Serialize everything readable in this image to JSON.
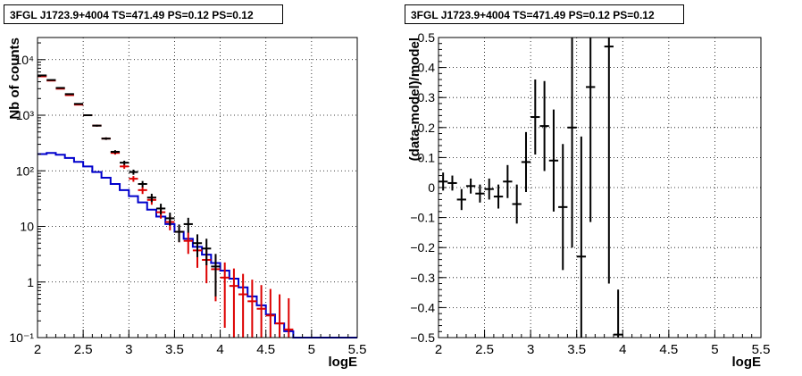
{
  "chart_data": [
    {
      "type": "histogram",
      "title": "3FGL J1723.9+4004 TS=471.49 PS=0.12 PS=0.12",
      "xlabel": "logE",
      "ylabel": "Nb of counts",
      "xlim": [
        2,
        5.5
      ],
      "ylim": [
        0.1,
        25000
      ],
      "yscale": "log",
      "grid": true,
      "xticks": [
        "2",
        "2.5",
        "3",
        "3.5",
        "4",
        "4.5",
        "5",
        "5.5"
      ],
      "yticks": [
        {
          "value": 0.1,
          "label": "10⁻¹"
        },
        {
          "value": 1,
          "label": "1"
        },
        {
          "value": 10,
          "label": "10"
        },
        {
          "value": 100,
          "label": "10²"
        },
        {
          "value": 1000,
          "label": "10³"
        },
        {
          "value": 10000,
          "label": "10⁴"
        }
      ],
      "bin_width": 0.1,
      "data_points": {
        "color": "#000000",
        "x": [
          2.05,
          2.15,
          2.25,
          2.35,
          2.45,
          2.55,
          2.65,
          2.75,
          2.85,
          2.95,
          3.05,
          3.15,
          3.25,
          3.35,
          3.45,
          3.55,
          3.65,
          3.75,
          3.85,
          3.95
        ],
        "y": [
          5200,
          4300,
          3100,
          2400,
          1600,
          1000,
          650,
          380,
          220,
          140,
          95,
          58,
          33,
          21,
          14,
          8,
          11,
          5,
          4,
          1.9
        ],
        "yerr_low": [
          70,
          65,
          55,
          49,
          40,
          32,
          25,
          19,
          15,
          12,
          10,
          7.6,
          5.7,
          4.6,
          3.7,
          2.8,
          3.3,
          2.2,
          2.0,
          1.35
        ],
        "yerr_high": [
          70,
          65,
          55,
          49,
          40,
          32,
          25,
          19,
          15,
          12,
          10,
          7.6,
          5.7,
          4.6,
          3.7,
          2.8,
          3.3,
          2.2,
          2.0,
          1.3
        ]
      },
      "model_points": {
        "color": "#dd0000",
        "x": [
          2.05,
          2.15,
          2.25,
          2.35,
          2.45,
          2.55,
          2.65,
          2.75,
          2.85,
          2.95,
          3.05,
          3.15,
          3.25,
          3.35,
          3.45,
          3.55,
          3.65,
          3.75,
          3.85,
          3.95,
          4.05,
          4.15,
          4.25,
          4.35,
          4.45,
          4.55,
          4.65,
          4.75
        ],
        "y": [
          5000,
          4200,
          3000,
          2300,
          1550,
          1000,
          650,
          380,
          210,
          120,
          72,
          45,
          30,
          18,
          12,
          8,
          5.5,
          3.7,
          2.5,
          1.7,
          1.2,
          0.85,
          0.6,
          0.45,
          0.33,
          0.25,
          0.18,
          0.14
        ],
        "yerr_low": [
          71,
          65,
          55,
          48,
          39,
          32,
          25,
          19,
          14.5,
          11,
          8.5,
          6.7,
          5.5,
          4.2,
          3.5,
          2.8,
          2.3,
          1.9,
          1.55,
          1.25,
          1.05,
          0.83,
          0.5,
          0.35,
          0.23,
          0.15,
          0.08,
          0.04
        ],
        "yerr_high": [
          71,
          65,
          55,
          48,
          39,
          32,
          25,
          19,
          14.5,
          11,
          8.5,
          6.7,
          5.5,
          4.2,
          3.5,
          2.8,
          2.3,
          1.9,
          1.55,
          1.25,
          1.05,
          0.9,
          0.8,
          0.65,
          0.55,
          0.5,
          0.42,
          0.37
        ]
      },
      "background": {
        "color": "#0000cc",
        "edges": [
          2.0,
          2.1,
          2.2,
          2.3,
          2.4,
          2.5,
          2.6,
          2.7,
          2.8,
          2.9,
          3.0,
          3.1,
          3.2,
          3.3,
          3.4,
          3.5,
          3.6,
          3.7,
          3.8,
          3.9,
          4.0,
          4.1,
          4.2,
          4.3,
          4.4,
          4.5,
          4.6,
          4.7,
          4.8,
          5.5
        ],
        "values": [
          200,
          210,
          195,
          170,
          145,
          120,
          95,
          75,
          58,
          45,
          35,
          27,
          20,
          15,
          11,
          8,
          6,
          4.3,
          3.1,
          2.2,
          1.6,
          1.15,
          0.8,
          0.55,
          0.38,
          0.26,
          0.18,
          0.13,
          0.1
        ]
      }
    },
    {
      "type": "scatter",
      "title": "3FGL J1723.9+4004 TS=471.49 PS=0.12 PS=0.12",
      "xlabel": "logE",
      "ylabel": "(data-model)/model",
      "xlim": [
        2,
        5.5
      ],
      "ylim": [
        -0.5,
        0.5
      ],
      "grid": true,
      "xticks": [
        "2",
        "2.5",
        "3",
        "3.5",
        "4",
        "4.5",
        "5",
        "5.5"
      ],
      "yticks": [
        "−0.5",
        "−0.4",
        "−0.3",
        "−0.2",
        "−0.1",
        "0",
        "0.1",
        "0.2",
        "0.3",
        "0.4",
        "0.5"
      ],
      "bin_width": 0.1,
      "series": {
        "color": "#000000",
        "x": [
          2.05,
          2.15,
          2.25,
          2.35,
          2.45,
          2.55,
          2.65,
          2.75,
          2.85,
          2.95,
          3.05,
          3.15,
          3.25,
          3.35,
          3.45,
          3.55,
          3.65,
          3.85,
          3.95
        ],
        "y": [
          0.02,
          0.015,
          -0.04,
          0.005,
          -0.02,
          -0.005,
          -0.03,
          0.02,
          -0.055,
          0.085,
          0.235,
          0.205,
          0.09,
          -0.065,
          0.2,
          -0.23,
          0.335,
          0.47,
          -0.49
        ],
        "err": [
          0.03,
          0.025,
          0.035,
          0.025,
          0.03,
          0.035,
          0.04,
          0.055,
          0.065,
          0.1,
          0.125,
          0.15,
          0.17,
          0.21,
          0.4,
          0.4,
          0.45,
          0.79,
          0.15
        ]
      }
    }
  ]
}
